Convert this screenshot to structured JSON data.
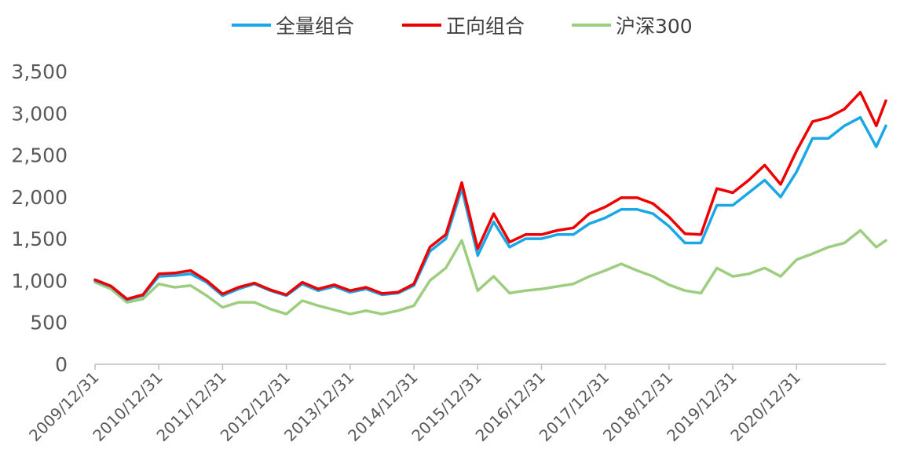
{
  "chart_data": {
    "type": "line",
    "title": "",
    "xlabel": "",
    "ylabel": "",
    "ylim": [
      0,
      3500
    ],
    "y_ticks": [
      0,
      500,
      1000,
      1500,
      2000,
      2500,
      3000,
      3500
    ],
    "y_tick_labels": [
      "0",
      "500",
      "1,000",
      "1,500",
      "2,000",
      "2,500",
      "3,000",
      "3,500"
    ],
    "x_tick_labels": [
      "2009/12/31",
      "2010/12/31",
      "2011/12/31",
      "2012/12/31",
      "2013/12/31",
      "2014/12/31",
      "2015/12/31",
      "2016/12/31",
      "2017/12/31",
      "2018/12/31",
      "2019/12/31",
      "2020/12/31"
    ],
    "x_range": [
      2009.0,
      2021.4
    ],
    "grid": false,
    "legend": "top",
    "series": [
      {
        "name": "全量组合",
        "color": "#1aa7e8",
        "points": [
          [
            2009.0,
            1000
          ],
          [
            2009.25,
            930
          ],
          [
            2009.5,
            770
          ],
          [
            2009.75,
            820
          ],
          [
            2010.0,
            1050
          ],
          [
            2010.25,
            1060
          ],
          [
            2010.5,
            1080
          ],
          [
            2010.75,
            980
          ],
          [
            2011.0,
            820
          ],
          [
            2011.25,
            900
          ],
          [
            2011.5,
            960
          ],
          [
            2011.75,
            880
          ],
          [
            2012.0,
            820
          ],
          [
            2012.25,
            960
          ],
          [
            2012.5,
            880
          ],
          [
            2012.75,
            930
          ],
          [
            2013.0,
            860
          ],
          [
            2013.25,
            900
          ],
          [
            2013.5,
            830
          ],
          [
            2013.75,
            850
          ],
          [
            2014.0,
            940
          ],
          [
            2014.25,
            1350
          ],
          [
            2014.5,
            1500
          ],
          [
            2014.75,
            2100
          ],
          [
            2015.0,
            1300
          ],
          [
            2015.25,
            1700
          ],
          [
            2015.5,
            1400
          ],
          [
            2015.75,
            1500
          ],
          [
            2016.0,
            1500
          ],
          [
            2016.25,
            1550
          ],
          [
            2016.5,
            1550
          ],
          [
            2016.75,
            1680
          ],
          [
            2017.0,
            1750
          ],
          [
            2017.25,
            1850
          ],
          [
            2017.5,
            1850
          ],
          [
            2017.75,
            1800
          ],
          [
            2018.0,
            1650
          ],
          [
            2018.25,
            1450
          ],
          [
            2018.5,
            1450
          ],
          [
            2018.75,
            1900
          ],
          [
            2019.0,
            1900
          ],
          [
            2019.25,
            2050
          ],
          [
            2019.5,
            2200
          ],
          [
            2019.75,
            2000
          ],
          [
            2020.0,
            2300
          ],
          [
            2020.25,
            2700
          ],
          [
            2020.5,
            2700
          ],
          [
            2020.75,
            2850
          ],
          [
            2021.0,
            2950
          ],
          [
            2021.25,
            2600
          ],
          [
            2021.4,
            2850
          ]
        ]
      },
      {
        "name": "正向组合",
        "color": "#ee0000",
        "points": [
          [
            2009.0,
            1010
          ],
          [
            2009.25,
            935
          ],
          [
            2009.5,
            780
          ],
          [
            2009.75,
            830
          ],
          [
            2010.0,
            1080
          ],
          [
            2010.25,
            1090
          ],
          [
            2010.5,
            1120
          ],
          [
            2010.75,
            1000
          ],
          [
            2011.0,
            840
          ],
          [
            2011.25,
            920
          ],
          [
            2011.5,
            970
          ],
          [
            2011.75,
            890
          ],
          [
            2012.0,
            830
          ],
          [
            2012.25,
            980
          ],
          [
            2012.5,
            900
          ],
          [
            2012.75,
            950
          ],
          [
            2013.0,
            880
          ],
          [
            2013.25,
            920
          ],
          [
            2013.5,
            845
          ],
          [
            2013.75,
            860
          ],
          [
            2014.0,
            960
          ],
          [
            2014.25,
            1400
          ],
          [
            2014.5,
            1550
          ],
          [
            2014.75,
            2170
          ],
          [
            2015.0,
            1380
          ],
          [
            2015.25,
            1800
          ],
          [
            2015.5,
            1460
          ],
          [
            2015.75,
            1550
          ],
          [
            2016.0,
            1550
          ],
          [
            2016.25,
            1600
          ],
          [
            2016.5,
            1630
          ],
          [
            2016.75,
            1800
          ],
          [
            2017.0,
            1880
          ],
          [
            2017.25,
            1990
          ],
          [
            2017.5,
            1990
          ],
          [
            2017.75,
            1920
          ],
          [
            2018.0,
            1760
          ],
          [
            2018.25,
            1560
          ],
          [
            2018.5,
            1550
          ],
          [
            2018.75,
            2100
          ],
          [
            2019.0,
            2050
          ],
          [
            2019.25,
            2200
          ],
          [
            2019.5,
            2380
          ],
          [
            2019.75,
            2150
          ],
          [
            2020.0,
            2550
          ],
          [
            2020.25,
            2900
          ],
          [
            2020.5,
            2950
          ],
          [
            2020.75,
            3050
          ],
          [
            2021.0,
            3250
          ],
          [
            2021.25,
            2850
          ],
          [
            2021.4,
            3150
          ]
        ]
      },
      {
        "name": "沪深300",
        "color": "#9dce7f",
        "points": [
          [
            2009.0,
            980
          ],
          [
            2009.25,
            900
          ],
          [
            2009.5,
            740
          ],
          [
            2009.75,
            780
          ],
          [
            2010.0,
            960
          ],
          [
            2010.25,
            920
          ],
          [
            2010.5,
            940
          ],
          [
            2010.75,
            820
          ],
          [
            2011.0,
            680
          ],
          [
            2011.25,
            740
          ],
          [
            2011.5,
            740
          ],
          [
            2011.75,
            660
          ],
          [
            2012.0,
            600
          ],
          [
            2012.25,
            760
          ],
          [
            2012.5,
            700
          ],
          [
            2012.75,
            650
          ],
          [
            2013.0,
            600
          ],
          [
            2013.25,
            640
          ],
          [
            2013.5,
            600
          ],
          [
            2013.75,
            640
          ],
          [
            2014.0,
            700
          ],
          [
            2014.25,
            1000
          ],
          [
            2014.5,
            1150
          ],
          [
            2014.75,
            1480
          ],
          [
            2015.0,
            880
          ],
          [
            2015.25,
            1050
          ],
          [
            2015.5,
            850
          ],
          [
            2015.75,
            880
          ],
          [
            2016.0,
            900
          ],
          [
            2016.25,
            930
          ],
          [
            2016.5,
            960
          ],
          [
            2016.75,
            1050
          ],
          [
            2017.0,
            1120
          ],
          [
            2017.25,
            1200
          ],
          [
            2017.5,
            1120
          ],
          [
            2017.75,
            1050
          ],
          [
            2018.0,
            950
          ],
          [
            2018.25,
            880
          ],
          [
            2018.5,
            850
          ],
          [
            2018.75,
            1150
          ],
          [
            2019.0,
            1050
          ],
          [
            2019.25,
            1080
          ],
          [
            2019.5,
            1150
          ],
          [
            2019.75,
            1050
          ],
          [
            2020.0,
            1250
          ],
          [
            2020.25,
            1320
          ],
          [
            2020.5,
            1400
          ],
          [
            2020.75,
            1450
          ],
          [
            2021.0,
            1600
          ],
          [
            2021.25,
            1400
          ],
          [
            2021.4,
            1480
          ]
        ]
      }
    ]
  }
}
